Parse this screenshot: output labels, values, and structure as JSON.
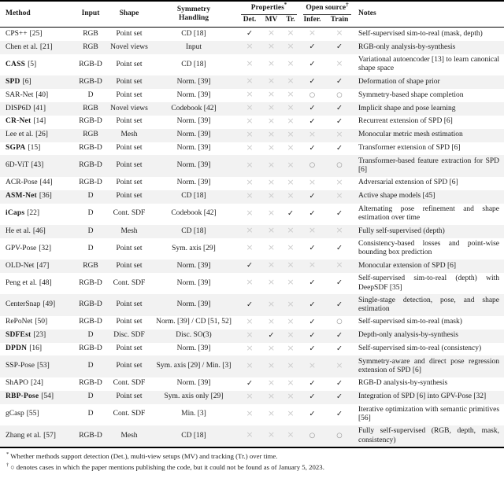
{
  "marks": {
    "check": "✓",
    "cross": "×",
    "circle": "○"
  },
  "colors": {
    "check": "#1c1c1c",
    "cross": "#cbcbcb",
    "circle": "#8f8f8f",
    "row_shade": "#f2f2f2",
    "rule": "#000000",
    "background": "#ffffff"
  },
  "header": {
    "method": "Method",
    "input": "Input",
    "shape": "Shape",
    "symmetry": "Symmetry\nHandling",
    "properties": "Properties",
    "properties_sup": "*",
    "open_source": "Open source",
    "open_source_sup": "†",
    "det": "Det.",
    "mv": "MV",
    "tr": "Tr.",
    "infer": "Infer.",
    "train": "Train",
    "notes": "Notes"
  },
  "rows": [
    {
      "method": "CPS++",
      "ref": "[25]",
      "bold": false,
      "input": "RGB",
      "shape": "Point set",
      "symmetry": "CD [18]",
      "det": "check",
      "mv": "cross",
      "tr": "cross",
      "infer": "cross",
      "train": "cross",
      "notes": "Self-supervised sim-to-real (mask, depth)"
    },
    {
      "method": "Chen et al.",
      "ref": "[21]",
      "bold": false,
      "input": "RGB",
      "shape": "Novel views",
      "symmetry": "Input",
      "det": "cross",
      "mv": "cross",
      "tr": "cross",
      "infer": "check",
      "train": "check",
      "notes": "RGB-only analysis-by-synthesis"
    },
    {
      "method": "CASS",
      "ref": "[5]",
      "bold": true,
      "input": "RGB-D",
      "shape": "Point set",
      "symmetry": "CD [18]",
      "det": "cross",
      "mv": "cross",
      "tr": "cross",
      "infer": "check",
      "train": "cross",
      "notes": "Variational autoencoder [13] to learn canonical shape space"
    },
    {
      "method": "SPD",
      "ref": "[6]",
      "bold": true,
      "input": "RGB-D",
      "shape": "Point set",
      "symmetry": "Norm. [39]",
      "det": "cross",
      "mv": "cross",
      "tr": "cross",
      "infer": "check",
      "train": "check",
      "notes": "Deformation of shape prior"
    },
    {
      "method": "SAR-Net",
      "ref": "[40]",
      "bold": false,
      "input": "D",
      "shape": "Point set",
      "symmetry": "Norm. [39]",
      "det": "cross",
      "mv": "cross",
      "tr": "cross",
      "infer": "circle",
      "train": "circle",
      "notes": "Symmetry-based shape completion"
    },
    {
      "method": "DISP6D",
      "ref": "[41]",
      "bold": false,
      "input": "RGB",
      "shape": "Novel views",
      "symmetry": "Codebook [42]",
      "det": "cross",
      "mv": "cross",
      "tr": "cross",
      "infer": "check",
      "train": "check",
      "notes": "Implicit shape and pose learning"
    },
    {
      "method": "CR-Net",
      "ref": "[14]",
      "bold": true,
      "input": "RGB-D",
      "shape": "Point set",
      "symmetry": "Norm. [39]",
      "det": "cross",
      "mv": "cross",
      "tr": "cross",
      "infer": "check",
      "train": "check",
      "notes": "Recurrent extension of SPD [6]"
    },
    {
      "method": "Lee et al.",
      "ref": "[26]",
      "bold": false,
      "input": "RGB",
      "shape": "Mesh",
      "symmetry": "Norm. [39]",
      "det": "cross",
      "mv": "cross",
      "tr": "cross",
      "infer": "cross",
      "train": "cross",
      "notes": "Monocular metric mesh estimation"
    },
    {
      "method": "SGPA",
      "ref": "[15]",
      "bold": true,
      "input": "RGB-D",
      "shape": "Point set",
      "symmetry": "Norm. [39]",
      "det": "cross",
      "mv": "cross",
      "tr": "cross",
      "infer": "check",
      "train": "check",
      "notes": "Transformer extension of SPD [6]"
    },
    {
      "method": "6D-ViT",
      "ref": "[43]",
      "bold": false,
      "input": "RGB-D",
      "shape": "Point set",
      "symmetry": "Norm. [39]",
      "det": "cross",
      "mv": "cross",
      "tr": "cross",
      "infer": "circle",
      "train": "circle",
      "notes": "Transformer-based feature extraction for SPD [6]"
    },
    {
      "method": "ACR-Pose",
      "ref": "[44]",
      "bold": false,
      "input": "RGB-D",
      "shape": "Point set",
      "symmetry": "Norm. [39]",
      "det": "cross",
      "mv": "cross",
      "tr": "cross",
      "infer": "cross",
      "train": "cross",
      "notes": "Adversarial extension of SPD [6]"
    },
    {
      "method": "ASM-Net",
      "ref": "[36]",
      "bold": true,
      "input": "D",
      "shape": "Point set",
      "symmetry": "CD [18]",
      "det": "cross",
      "mv": "cross",
      "tr": "cross",
      "infer": "check",
      "train": "cross",
      "notes": "Active shape models [45]"
    },
    {
      "method": "iCaps",
      "ref": "[22]",
      "bold": true,
      "input": "D",
      "shape": "Cont. SDF",
      "symmetry": "Codebook [42]",
      "det": "cross",
      "mv": "cross",
      "tr": "check",
      "infer": "check",
      "train": "check",
      "notes": "Alternating pose refinement and shape estimation over time"
    },
    {
      "method": "He et al.",
      "ref": "[46]",
      "bold": false,
      "input": "D",
      "shape": "Mesh",
      "symmetry": "CD [18]",
      "det": "cross",
      "mv": "cross",
      "tr": "cross",
      "infer": "cross",
      "train": "cross",
      "notes": "Fully self-supervised (depth)"
    },
    {
      "method": "GPV-Pose",
      "ref": "[32]",
      "bold": false,
      "input": "D",
      "shape": "Point set",
      "symmetry": "Sym. axis [29]",
      "det": "cross",
      "mv": "cross",
      "tr": "cross",
      "infer": "check",
      "train": "check",
      "notes": "Consistency-based losses and point-wise bounding box prediction"
    },
    {
      "method": "OLD-Net",
      "ref": "[47]",
      "bold": false,
      "input": "RGB",
      "shape": "Point set",
      "symmetry": "Norm. [39]",
      "det": "check",
      "mv": "cross",
      "tr": "cross",
      "infer": "cross",
      "train": "cross",
      "notes": "Monocular extension of SPD [6]"
    },
    {
      "method": "Peng et al.",
      "ref": "[48]",
      "bold": false,
      "input": "RGB-D",
      "shape": "Cont. SDF",
      "symmetry": "Norm. [39]",
      "det": "cross",
      "mv": "cross",
      "tr": "cross",
      "infer": "check",
      "train": "check",
      "notes": "Self-supervised sim-to-real (depth) with DeepSDF [35]"
    },
    {
      "method": "CenterSnap",
      "ref": "[49]",
      "bold": false,
      "input": "RGB-D",
      "shape": "Point set",
      "symmetry": "Norm. [39]",
      "det": "check",
      "mv": "cross",
      "tr": "cross",
      "infer": "check",
      "train": "check",
      "notes": "Single-stage detection, pose, and shape estimation"
    },
    {
      "method": "RePoNet",
      "ref": "[50]",
      "bold": false,
      "input": "RGB-D",
      "shape": "Point set",
      "symmetry": "Norm. [39] / CD [51, 52]",
      "det": "cross",
      "mv": "cross",
      "tr": "cross",
      "infer": "check",
      "train": "circle",
      "notes": "Self-supervised sim-to-real (mask)"
    },
    {
      "method": "SDFEst",
      "ref": "[23]",
      "bold": true,
      "input": "D",
      "shape": "Disc. SDF",
      "symmetry": "Disc. SO(3)",
      "det": "cross",
      "mv": "check",
      "tr": "cross",
      "infer": "check",
      "train": "check",
      "notes": "Depth-only analysis-by-synthesis"
    },
    {
      "method": "DPDN",
      "ref": "[16]",
      "bold": true,
      "input": "RGB-D",
      "shape": "Point set",
      "symmetry": "Norm. [39]",
      "det": "cross",
      "mv": "cross",
      "tr": "cross",
      "infer": "check",
      "train": "check",
      "notes": "Self-supervised sim-to-real (consistency)"
    },
    {
      "method": "SSP-Pose",
      "ref": "[53]",
      "bold": false,
      "input": "D",
      "shape": "Point set",
      "symmetry": "Sym. axis [29] / Min. [3]",
      "det": "cross",
      "mv": "cross",
      "tr": "cross",
      "infer": "cross",
      "train": "cross",
      "notes": "Symmetry-aware and direct pose regression extension of SPD [6]"
    },
    {
      "method": "ShAPO",
      "ref": "[24]",
      "bold": false,
      "input": "RGB-D",
      "shape": "Cont. SDF",
      "symmetry": "Norm. [39]",
      "det": "check",
      "mv": "cross",
      "tr": "cross",
      "infer": "check",
      "train": "check",
      "notes": "RGB-D analysis-by-synthesis"
    },
    {
      "method": "RBP-Pose",
      "ref": "[54]",
      "bold": true,
      "input": "D",
      "shape": "Point set",
      "symmetry": "Sym. axis only [29]",
      "det": "cross",
      "mv": "cross",
      "tr": "cross",
      "infer": "check",
      "train": "check",
      "notes": "Integration of SPD [6] into GPV-Pose [32]"
    },
    {
      "method": "gCasp",
      "ref": "[55]",
      "bold": false,
      "input": "D",
      "shape": "Cont. SDF",
      "symmetry": "Min. [3]",
      "det": "cross",
      "mv": "cross",
      "tr": "cross",
      "infer": "check",
      "train": "check",
      "notes": "Iterative optimization with semantic primitives [56]"
    },
    {
      "method": "Zhang et al.",
      "ref": "[57]",
      "bold": false,
      "input": "RGB-D",
      "shape": "Mesh",
      "symmetry": "CD [18]",
      "det": "cross",
      "mv": "cross",
      "tr": "cross",
      "infer": "circle",
      "train": "circle",
      "notes": "Fully self-supervised (RGB, depth, mask, consistency)"
    }
  ],
  "footnotes": [
    {
      "sup": "*",
      "text": "Whether methods support detection (Det.), multi-view setups (MV) and tracking (Tr.) over time."
    },
    {
      "sup": "†",
      "text": "○ denotes cases in which the paper mentions publishing the code, but it could not be found as of January 5, 2023."
    }
  ]
}
